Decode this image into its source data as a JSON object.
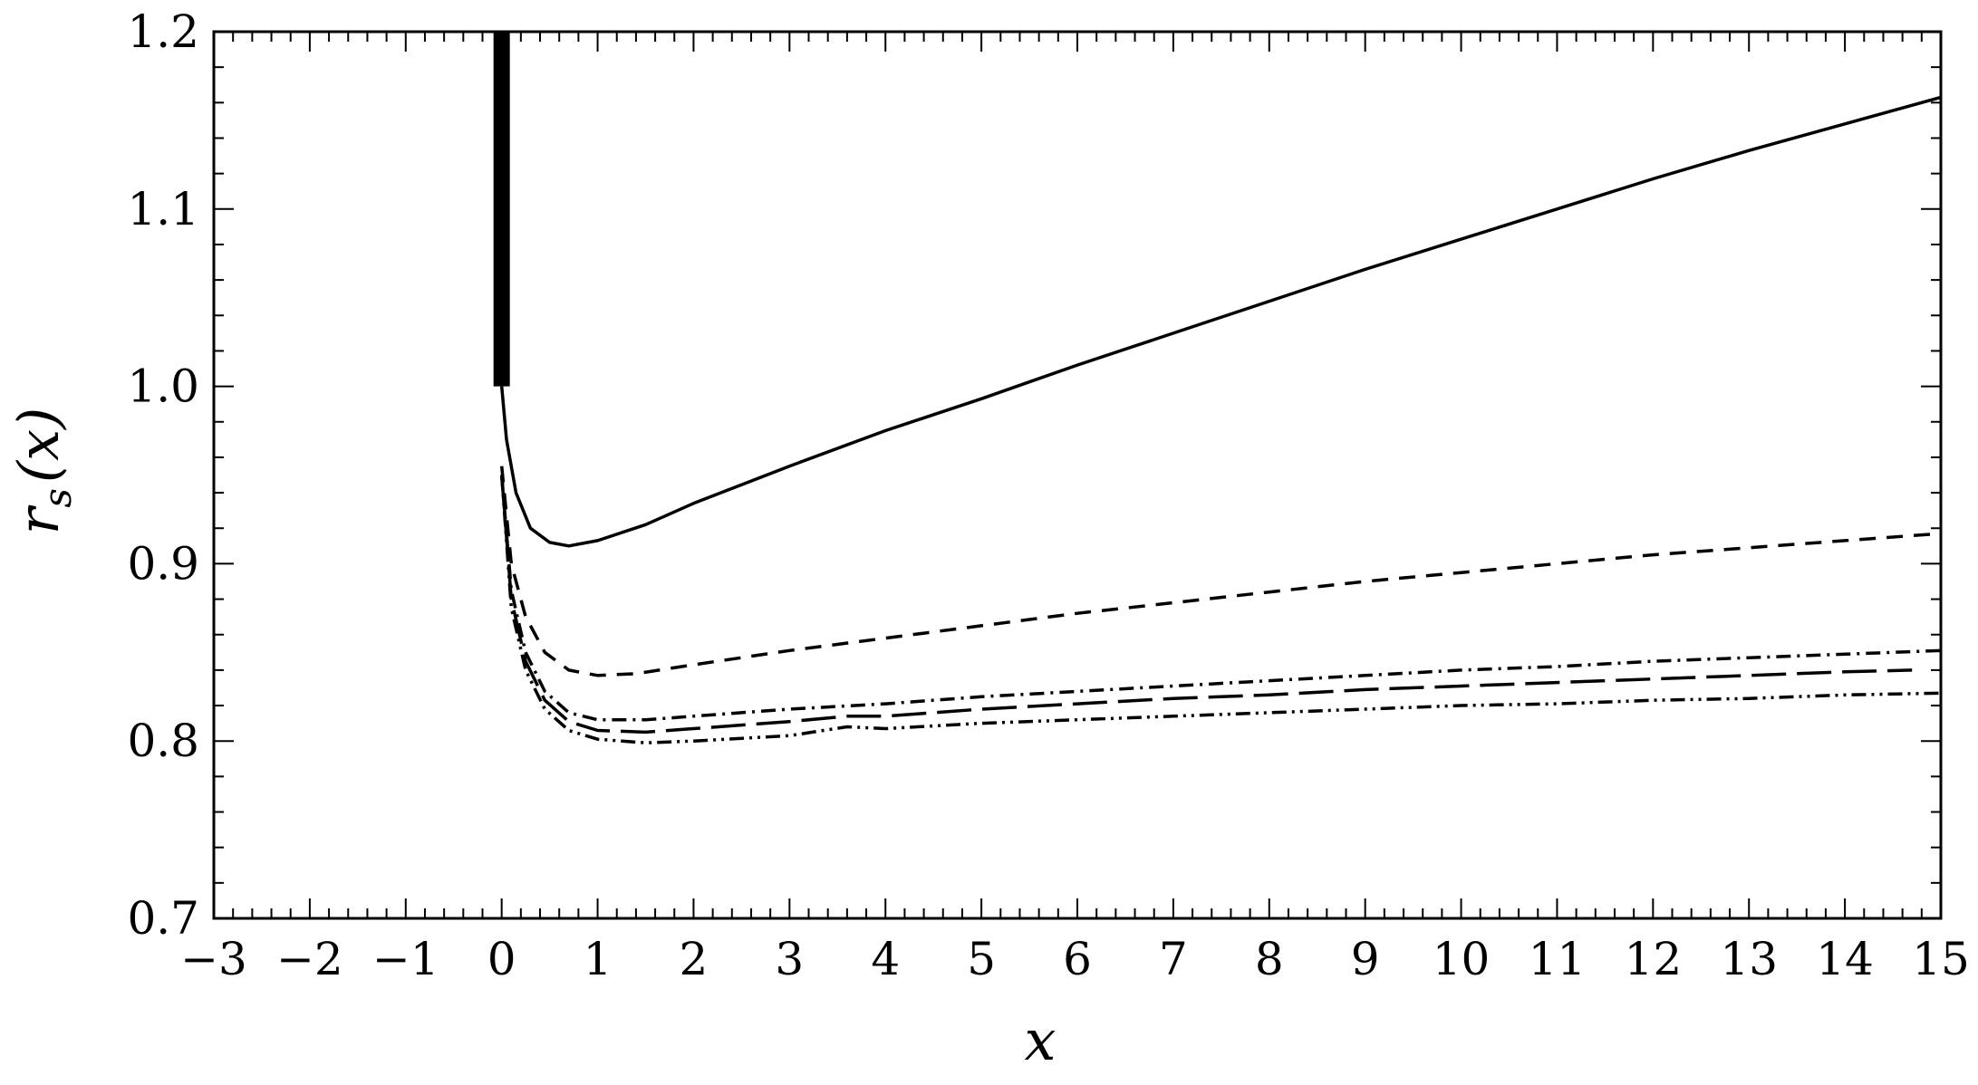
{
  "chart_data": {
    "type": "line",
    "title": "",
    "xlabel": "x",
    "ylabel_main": "r",
    "ylabel_sub": "s",
    "ylabel_arg": "(x)",
    "xlim": [
      -3,
      15
    ],
    "ylim": [
      0.7,
      1.2
    ],
    "x_ticks": [
      -3,
      -2,
      -1,
      0,
      1,
      2,
      3,
      4,
      5,
      6,
      7,
      8,
      9,
      10,
      11,
      12,
      13,
      14,
      15
    ],
    "x_tick_labels": [
      "−3",
      "−2",
      "−1",
      "0",
      "1",
      "2",
      "3",
      "4",
      "5",
      "6",
      "7",
      "8",
      "9",
      "10",
      "11",
      "12",
      "13",
      "14",
      "15"
    ],
    "y_ticks": [
      0.7,
      0.8,
      0.9,
      1.0,
      1.1,
      1.2
    ],
    "y_tick_labels": [
      "0.7",
      "0.8",
      "0.9",
      "1.0",
      "1.1",
      "1.2"
    ],
    "grid": false,
    "vertical_bar": {
      "x": 0,
      "y_from": 1.0,
      "y_to": 1.2
    },
    "series": [
      {
        "style": "solid",
        "points": [
          [
            0,
            1.0
          ],
          [
            0.05,
            0.97
          ],
          [
            0.15,
            0.94
          ],
          [
            0.3,
            0.92
          ],
          [
            0.5,
            0.912
          ],
          [
            0.7,
            0.91
          ],
          [
            1,
            0.913
          ],
          [
            1.5,
            0.922
          ],
          [
            2,
            0.934
          ],
          [
            3,
            0.955
          ],
          [
            4,
            0.975
          ],
          [
            5,
            0.993
          ],
          [
            6,
            1.012
          ],
          [
            7,
            1.03
          ],
          [
            8,
            1.048
          ],
          [
            9,
            1.066
          ],
          [
            10,
            1.083
          ],
          [
            11,
            1.1
          ],
          [
            12,
            1.117
          ],
          [
            13,
            1.133
          ],
          [
            14,
            1.148
          ],
          [
            15,
            1.163
          ]
        ]
      },
      {
        "style": "dashed",
        "points": [
          [
            0,
            0.955
          ],
          [
            0.1,
            0.9
          ],
          [
            0.25,
            0.87
          ],
          [
            0.45,
            0.85
          ],
          [
            0.7,
            0.84
          ],
          [
            1.0,
            0.837
          ],
          [
            1.4,
            0.838
          ],
          [
            2,
            0.843
          ],
          [
            3,
            0.851
          ],
          [
            4,
            0.858
          ],
          [
            5,
            0.865
          ],
          [
            6,
            0.872
          ],
          [
            7,
            0.878
          ],
          [
            8,
            0.884
          ],
          [
            9,
            0.89
          ],
          [
            10,
            0.895
          ],
          [
            11,
            0.9
          ],
          [
            12,
            0.905
          ],
          [
            13,
            0.909
          ],
          [
            14,
            0.913
          ],
          [
            15,
            0.917
          ]
        ]
      },
      {
        "style": "dashdot",
        "points": [
          [
            0,
            0.95
          ],
          [
            0.1,
            0.885
          ],
          [
            0.25,
            0.85
          ],
          [
            0.45,
            0.828
          ],
          [
            0.7,
            0.816
          ],
          [
            1.0,
            0.812
          ],
          [
            1.5,
            0.812
          ],
          [
            2,
            0.814
          ],
          [
            3,
            0.818
          ],
          [
            4,
            0.821
          ],
          [
            5,
            0.825
          ],
          [
            6,
            0.828
          ],
          [
            7,
            0.831
          ],
          [
            8,
            0.834
          ],
          [
            9,
            0.837
          ],
          [
            10,
            0.84
          ],
          [
            11,
            0.842
          ],
          [
            12,
            0.845
          ],
          [
            13,
            0.847
          ],
          [
            14,
            0.849
          ],
          [
            15,
            0.851
          ]
        ]
      },
      {
        "style": "longdash",
        "points": [
          [
            0,
            0.95
          ],
          [
            0.1,
            0.88
          ],
          [
            0.25,
            0.845
          ],
          [
            0.45,
            0.823
          ],
          [
            0.7,
            0.811
          ],
          [
            1.0,
            0.806
          ],
          [
            1.5,
            0.805
          ],
          [
            2,
            0.807
          ],
          [
            3,
            0.811
          ],
          [
            3.6,
            0.814
          ],
          [
            4,
            0.814
          ],
          [
            5,
            0.818
          ],
          [
            6,
            0.821
          ],
          [
            7,
            0.824
          ],
          [
            8,
            0.826
          ],
          [
            9,
            0.829
          ],
          [
            10,
            0.831
          ],
          [
            11,
            0.833
          ],
          [
            12,
            0.835
          ],
          [
            13,
            0.837
          ],
          [
            14,
            0.839
          ],
          [
            14.7,
            0.84
          ]
        ]
      },
      {
        "style": "dashdotdot",
        "points": [
          [
            0,
            0.95
          ],
          [
            0.1,
            0.875
          ],
          [
            0.25,
            0.84
          ],
          [
            0.45,
            0.818
          ],
          [
            0.7,
            0.806
          ],
          [
            1.0,
            0.801
          ],
          [
            1.5,
            0.799
          ],
          [
            2,
            0.8
          ],
          [
            3,
            0.803
          ],
          [
            3.6,
            0.808
          ],
          [
            4,
            0.807
          ],
          [
            5,
            0.81
          ],
          [
            6,
            0.812
          ],
          [
            7,
            0.814
          ],
          [
            8,
            0.816
          ],
          [
            9,
            0.818
          ],
          [
            10,
            0.82
          ],
          [
            11,
            0.821
          ],
          [
            12,
            0.823
          ],
          [
            13,
            0.824
          ],
          [
            14,
            0.826
          ],
          [
            15,
            0.827
          ]
        ]
      }
    ]
  }
}
